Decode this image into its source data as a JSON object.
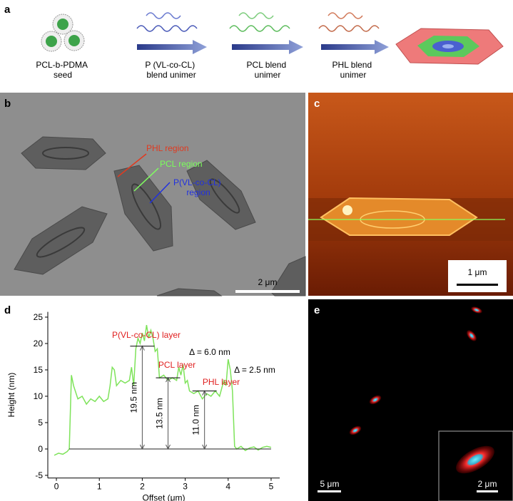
{
  "panel_a": {
    "letter": "a",
    "seed_label": [
      "PCL-b-PDMA",
      "seed"
    ],
    "step_labels": [
      [
        "P (VL-co-CL)",
        "blend unimer"
      ],
      [
        "PCL blend",
        "unimer"
      ],
      [
        "PHL blend",
        "unimer"
      ]
    ]
  },
  "panel_b": {
    "letter": "b",
    "labels": [
      "PHL region",
      "PCL region"
    ],
    "pvl_label": [
      "P(VL-co-CL)",
      "region"
    ],
    "scale_bar": "2 μm"
  },
  "panel_c": {
    "letter": "c",
    "scale_bar": "1 μm"
  },
  "panel_e": {
    "letter": "e",
    "scale_bar": "5 μm",
    "inset_scale_bar": "2 μm"
  },
  "chart_data": {
    "type": "line",
    "letter": "d",
    "x_label": "Offset (μm)",
    "y_label": "Height (nm)",
    "x": [
      -0.05,
      0.05,
      0.15,
      0.25,
      0.3,
      0.35,
      0.4,
      0.5,
      0.6,
      0.7,
      0.8,
      0.9,
      1.0,
      1.1,
      1.2,
      1.25,
      1.3,
      1.35,
      1.4,
      1.5,
      1.6,
      1.7,
      1.75,
      1.8,
      1.85,
      1.9,
      1.95,
      2.0,
      2.05,
      2.1,
      2.15,
      2.2,
      2.25,
      2.3,
      2.35,
      2.4,
      2.5,
      2.6,
      2.7,
      2.8,
      2.85,
      2.9,
      2.95,
      3.0,
      3.05,
      3.1,
      3.2,
      3.3,
      3.4,
      3.5,
      3.6,
      3.7,
      3.8,
      3.85,
      3.9,
      3.95,
      4.0,
      4.05,
      4.1,
      4.15,
      4.2,
      4.3,
      4.4,
      4.5,
      4.6,
      4.7,
      4.8,
      4.9,
      5.0
    ],
    "values": [
      -1.2,
      -0.8,
      -1,
      -0.5,
      0,
      14,
      12,
      9.5,
      10,
      8.5,
      9.5,
      9,
      10,
      9,
      9.5,
      12,
      15.5,
      15,
      12,
      13,
      12.5,
      13,
      15.5,
      12,
      19,
      21,
      20,
      22,
      20.5,
      23.5,
      21,
      22.5,
      21,
      18.5,
      19,
      13.5,
      14,
      13,
      13.5,
      13,
      15.5,
      14,
      16,
      12.5,
      13,
      11,
      10.5,
      11,
      9.5,
      10.5,
      10,
      11,
      10,
      11.5,
      13,
      12,
      17,
      15,
      11,
      0.5,
      0,
      0.5,
      -0.3,
      0.2,
      0.4,
      -0.2,
      0.3,
      0.5,
      0.3
    ],
    "color": "#7ee35a",
    "xlim": [
      -0.2,
      5.2
    ],
    "ylim": [
      -5.5,
      26
    ],
    "xticks": [
      0,
      1,
      2,
      3,
      4,
      5
    ],
    "yticks": [
      -5,
      0,
      5,
      10,
      15,
      20,
      25
    ],
    "layer_labels": [
      "P(VL-co-CL) layer",
      "PCL layer",
      "PHL layer"
    ],
    "delta_labels": [
      "Δ = 6.0 nm",
      "Δ = 2.5 nm"
    ],
    "heights": [
      {
        "x": 2.0,
        "value": 19.5,
        "label": "19.5 nm"
      },
      {
        "x": 2.6,
        "value": 13.5,
        "label": "13.5 nm"
      },
      {
        "x": 3.45,
        "value": 11.0,
        "label": "11.0 nm"
      }
    ]
  }
}
